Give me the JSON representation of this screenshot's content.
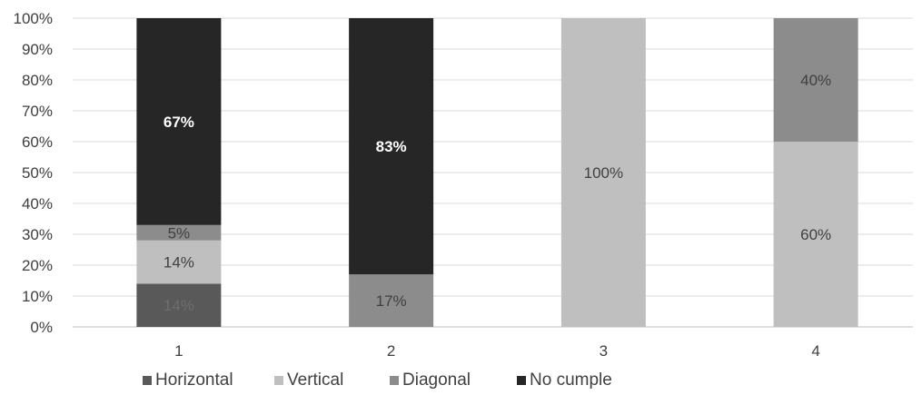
{
  "chart_data": {
    "type": "bar",
    "stacked": true,
    "percent": true,
    "categories": [
      "1",
      "2",
      "3",
      "4"
    ],
    "series": [
      {
        "name": "Horizontal",
        "color": "#595959",
        "values": [
          14,
          0,
          0,
          0
        ],
        "labels": [
          "14%",
          "",
          "",
          ""
        ],
        "label_color": "#6e6e6e"
      },
      {
        "name": "Vertical",
        "color": "#bfbfbf",
        "values": [
          14,
          0,
          100,
          60
        ],
        "labels": [
          "14%",
          "",
          "100%",
          "60%"
        ],
        "label_color": "#404040"
      },
      {
        "name": "Diagonal",
        "color": "#8c8c8c",
        "values": [
          5,
          17,
          0,
          40
        ],
        "labels": [
          "5%",
          "17%",
          "",
          "40%"
        ],
        "label_color": "#404040"
      },
      {
        "name": "No cumple",
        "color": "#262626",
        "values": [
          67,
          83,
          0,
          0
        ],
        "labels": [
          "67%",
          "83%",
          "",
          ""
        ],
        "label_color": "#ffffff"
      }
    ],
    "ylim": [
      0,
      100
    ],
    "yticks": [
      "0%",
      "10%",
      "20%",
      "30%",
      "40%",
      "50%",
      "60%",
      "70%",
      "80%",
      "90%",
      "100%"
    ],
    "grid": true,
    "legend": "bottom",
    "xlabel": "",
    "ylabel": "",
    "title": ""
  }
}
